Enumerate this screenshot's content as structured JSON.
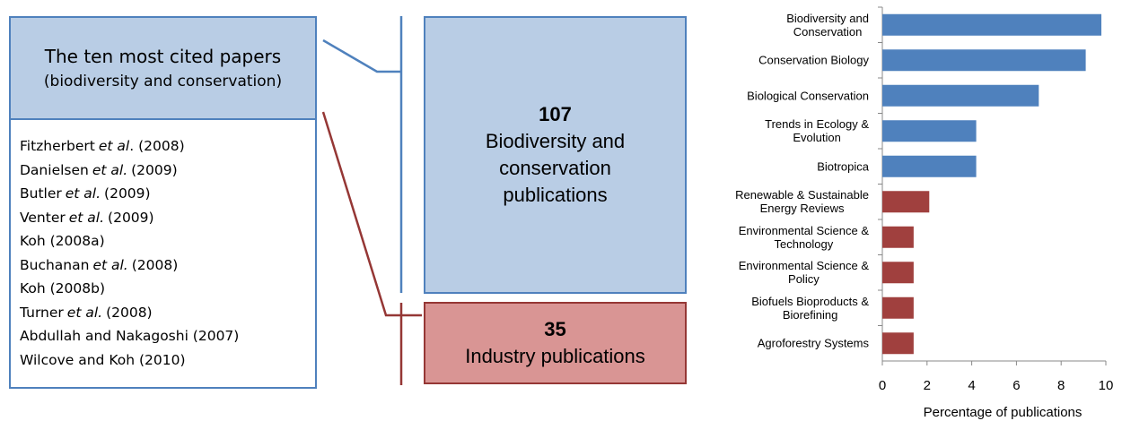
{
  "diagram": {
    "cited_title": "The ten most cited papers",
    "cited_subtitle": "(biodiversity and conservation)",
    "papers": [
      {
        "name": "Fitzherbert",
        "etal": "et al",
        "year": ". (2008)"
      },
      {
        "name": "Danielsen",
        "etal": "et al.",
        "year": "(2009)"
      },
      {
        "name": "Butler",
        "etal": "et al.",
        "year": "(2009)"
      },
      {
        "name": "Venter",
        "etal": "et al.",
        "year": "(2009)"
      },
      {
        "name": "Koh (2008a)"
      },
      {
        "name": "Buchanan",
        "etal": "et al.",
        "year": "(2008)"
      },
      {
        "name": "Koh (2008b)"
      },
      {
        "name": "Turner",
        "etal": "et al.",
        "year": "(2008)"
      },
      {
        "name": "Abdullah and Nakagoshi (2007)"
      },
      {
        "name": "Wilcove and Koh (2010)"
      }
    ],
    "conservation_count": "107",
    "conservation_label": "Biodiversity and\nconservation\npublications",
    "industry_count": "35",
    "industry_label": "Industry publications"
  },
  "chart_data": {
    "type": "barh",
    "x_label": "Percentage of publications",
    "categories": [
      "Biodiversity and\nConservation",
      "Conservation Biology",
      "Biological Conservation",
      "Trends in Ecology &\nEvolution",
      "Biotropica",
      "Renewable & Sustainable\nEnergy Reviews",
      "Environmental Science &\nTechnology",
      "Environmental Science &\nPolicy",
      "Biofuels Bioproducts &\nBiorefining",
      "Agroforestry Systems"
    ],
    "values": [
      9.8,
      9.1,
      7.0,
      4.2,
      4.2,
      2.1,
      1.4,
      1.4,
      1.4,
      1.4
    ],
    "colors": [
      "#4f81bd",
      "#4f81bd",
      "#4f81bd",
      "#4f81bd",
      "#4f81bd",
      "#a0403e",
      "#a0403e",
      "#a0403e",
      "#a0403e",
      "#a0403e"
    ],
    "xlim": [
      0,
      10
    ],
    "xticks": [
      0,
      2,
      4,
      6,
      8,
      10
    ],
    "grid": false
  }
}
